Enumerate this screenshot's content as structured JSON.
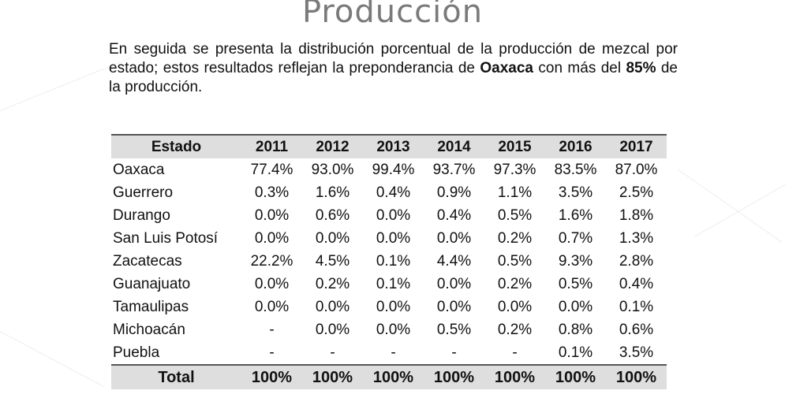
{
  "title": "Producción",
  "intro": {
    "part1": "En seguida se presenta la distribución porcentual de la producción de mezcal por estado; estos resultados reflejan la preponderancia de ",
    "bold1": "Oaxaca",
    "part2": " con más del ",
    "bold2": "85%",
    "part3": " de la producción."
  },
  "table": {
    "header": [
      "Estado",
      "2011",
      "2012",
      "2013",
      "2014",
      "2015",
      "2016",
      "2017"
    ],
    "rows": [
      [
        "Oaxaca",
        "77.4%",
        "93.0%",
        "99.4%",
        "93.7%",
        "97.3%",
        "83.5%",
        "87.0%"
      ],
      [
        "Guerrero",
        "0.3%",
        "1.6%",
        "0.4%",
        "0.9%",
        "1.1%",
        "3.5%",
        "2.5%"
      ],
      [
        "Durango",
        "0.0%",
        "0.6%",
        "0.0%",
        "0.4%",
        "0.5%",
        "1.6%",
        "1.8%"
      ],
      [
        "San Luis Potosí",
        "0.0%",
        "0.0%",
        "0.0%",
        "0.0%",
        "0.2%",
        "0.7%",
        "1.3%"
      ],
      [
        "Zacatecas",
        "22.2%",
        "4.5%",
        "0.1%",
        "4.4%",
        "0.5%",
        "9.3%",
        "2.8%"
      ],
      [
        "Guanajuato",
        "0.0%",
        "0.2%",
        "0.1%",
        "0.0%",
        "0.2%",
        "0.5%",
        "0.4%"
      ],
      [
        "Tamaulipas",
        "0.0%",
        "0.0%",
        "0.0%",
        "0.0%",
        "0.0%",
        "0.0%",
        "0.1%"
      ],
      [
        "Michoacán",
        "-",
        "0.0%",
        "0.0%",
        "0.5%",
        "0.2%",
        "0.8%",
        "0.6%"
      ],
      [
        "Puebla",
        "-",
        "-",
        "-",
        "-",
        "-",
        "0.1%",
        "3.5%"
      ]
    ],
    "total": [
      "Total",
      "100%",
      "100%",
      "100%",
      "100%",
      "100%",
      "100%",
      "100%"
    ]
  },
  "colors": {
    "header_bg": "#dedede",
    "title": "#7a7a7a",
    "rule": "#555555"
  }
}
